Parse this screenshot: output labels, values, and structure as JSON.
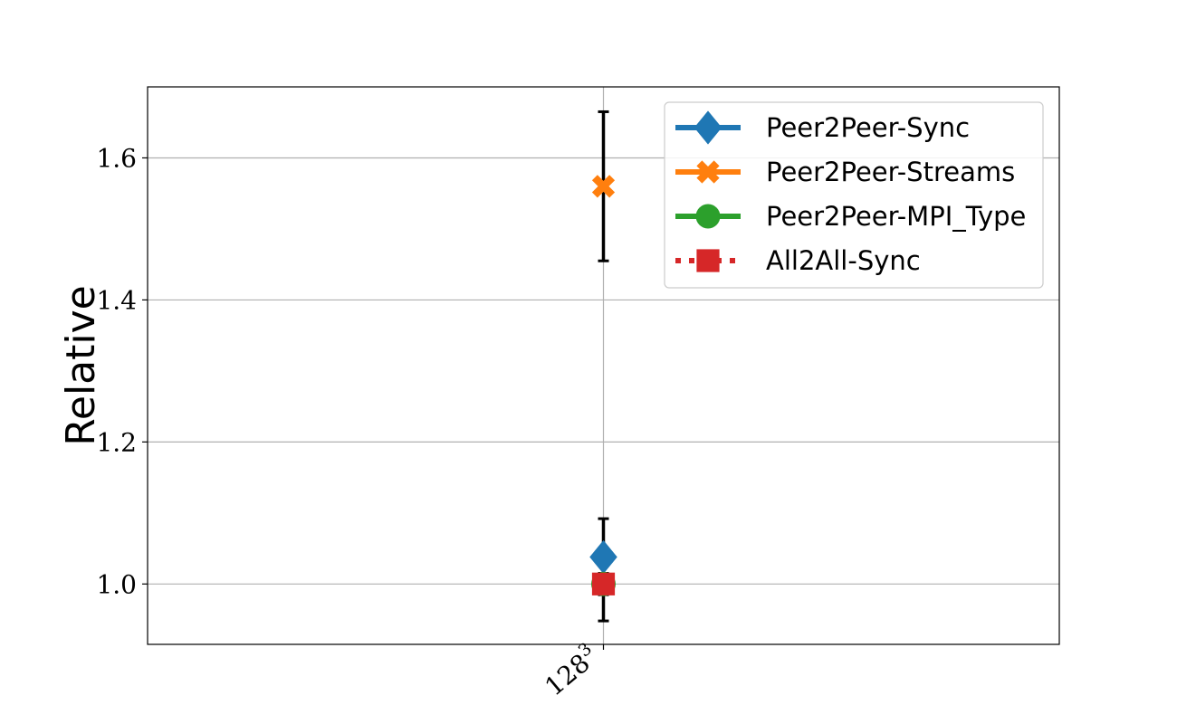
{
  "chart_data": {
    "type": "scatter",
    "title": "",
    "xlabel": "",
    "ylabel": "Relative",
    "categories": [
      {
        "base": "128",
        "sup": "3"
      }
    ],
    "ylim": [
      0.915,
      1.7
    ],
    "yticks": [
      "1.0",
      "1.2",
      "1.4",
      "1.6"
    ],
    "grid": true,
    "legend_position": "top-right",
    "series": [
      {
        "name": "Peer2Peer-Sync",
        "values": [
          1.038
        ],
        "err_low": [
          0.948
        ],
        "err_high": [
          1.092
        ],
        "color": "#1f77b4",
        "marker": "diamond",
        "line": "solid"
      },
      {
        "name": "Peer2Peer-Streams",
        "values": [
          1.56
        ],
        "err_low": [
          1.455
        ],
        "err_high": [
          1.665
        ],
        "color": "#ff7f0e",
        "marker": "x",
        "line": "solid"
      },
      {
        "name": "Peer2Peer-MPI_Type",
        "values": [
          1.0
        ],
        "err_low": [
          0.985
        ],
        "err_high": [
          1.015
        ],
        "color": "#2ca02c",
        "marker": "circle",
        "line": "solid"
      },
      {
        "name": "All2All-Sync",
        "values": [
          1.0
        ],
        "err_low": [
          0.985
        ],
        "err_high": [
          1.015
        ],
        "color": "#d62728",
        "marker": "square",
        "line": "dotted"
      }
    ],
    "errorbar_color": "#000000"
  }
}
